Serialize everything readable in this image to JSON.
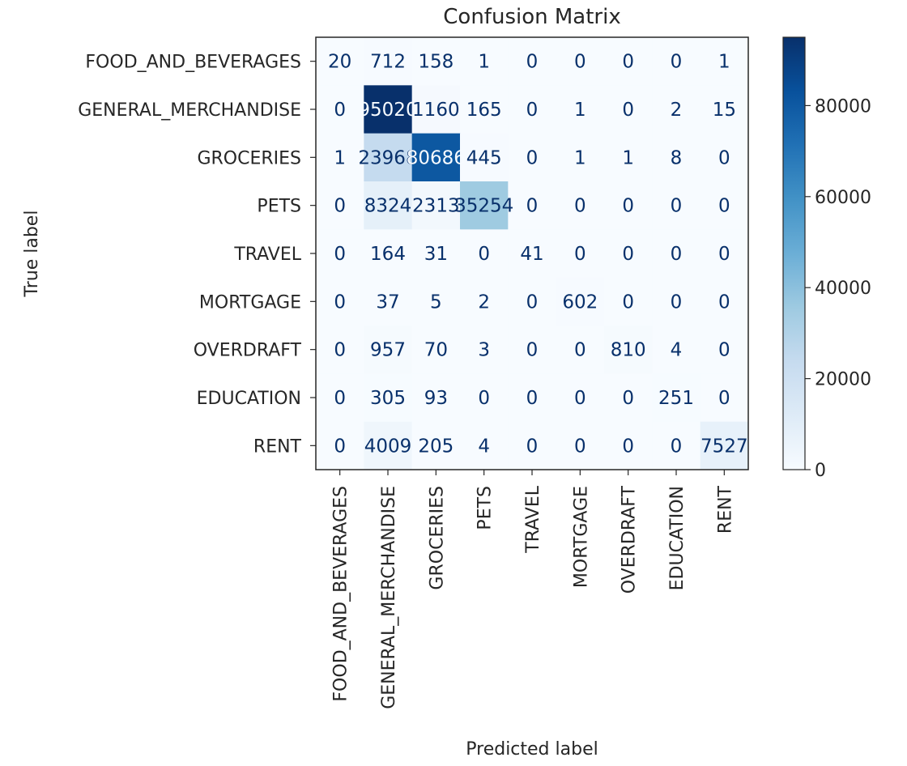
{
  "chart_data": {
    "type": "heatmap",
    "title": "Confusion Matrix",
    "xlabel": "Predicted label",
    "ylabel": "True label",
    "labels": [
      "FOOD_AND_BEVERAGES",
      "GENERAL_MERCHANDISE",
      "GROCERIES",
      "PETS",
      "TRAVEL",
      "MORTGAGE",
      "OVERDRAFT",
      "EDUCATION",
      "RENT"
    ],
    "matrix": [
      [
        20,
        712,
        158,
        1,
        0,
        0,
        0,
        0,
        1
      ],
      [
        0,
        95020,
        1160,
        165,
        0,
        1,
        0,
        2,
        15
      ],
      [
        1,
        23968,
        80686,
        445,
        0,
        1,
        1,
        8,
        0
      ],
      [
        0,
        8324,
        2313,
        35254,
        0,
        0,
        0,
        0,
        0
      ],
      [
        0,
        164,
        31,
        0,
        41,
        0,
        0,
        0,
        0
      ],
      [
        0,
        37,
        5,
        2,
        0,
        602,
        0,
        0,
        0
      ],
      [
        0,
        957,
        70,
        3,
        0,
        0,
        810,
        4,
        0
      ],
      [
        0,
        305,
        93,
        0,
        0,
        0,
        0,
        251,
        0
      ],
      [
        0,
        4009,
        205,
        4,
        0,
        0,
        0,
        0,
        7527
      ]
    ],
    "colormap": "Blues",
    "colorbar": {
      "min": 0,
      "max": 95020,
      "ticks": [
        0,
        20000,
        40000,
        60000,
        80000
      ]
    },
    "grid": false
  }
}
